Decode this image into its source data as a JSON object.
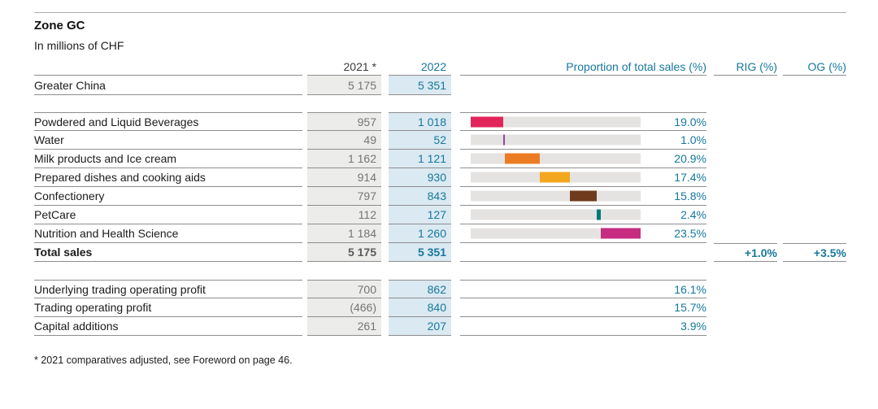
{
  "header": {
    "title": "Zone GC",
    "subtitle": "In millions of CHF"
  },
  "columns": {
    "y2021": "2021 *",
    "y2022": "2022",
    "proportion": "Proportion of total sales (%)",
    "rig": "RIG (%)",
    "og": "OG (%)"
  },
  "zone_row": {
    "label": "Greater China",
    "v2021": "5 175",
    "v2022": "5 351"
  },
  "categories": [
    {
      "label": "Powdered and Liquid Beverages",
      "v2021": "957",
      "v2022": "1 018",
      "pct": "19.0%",
      "bar": {
        "start": 0,
        "width": 19.0,
        "color": "#e2245a"
      }
    },
    {
      "label": "Water",
      "v2021": "49",
      "v2022": "52",
      "pct": "1.0%",
      "bar": {
        "start": 19.0,
        "width": 1.0,
        "color": "#8d4a9e"
      }
    },
    {
      "label": "Milk products and Ice cream",
      "v2021": "1 162",
      "v2022": "1 121",
      "pct": "20.9%",
      "bar": {
        "start": 20.0,
        "width": 20.9,
        "color": "#ec7c24"
      }
    },
    {
      "label": "Prepared dishes and cooking aids",
      "v2021": "914",
      "v2022": "930",
      "pct": "17.4%",
      "bar": {
        "start": 40.9,
        "width": 17.4,
        "color": "#f2a71f"
      }
    },
    {
      "label": "Confectionery",
      "v2021": "797",
      "v2022": "843",
      "pct": "15.8%",
      "bar": {
        "start": 58.3,
        "width": 15.8,
        "color": "#6f3b1c"
      }
    },
    {
      "label": "PetCare",
      "v2021": "112",
      "v2022": "127",
      "pct": "2.4%",
      "bar": {
        "start": 74.1,
        "width": 2.4,
        "color": "#007a79"
      }
    },
    {
      "label": "Nutrition and Health Science",
      "v2021": "1 184",
      "v2022": "1 260",
      "pct": "23.5%",
      "bar": {
        "start": 76.5,
        "width": 23.5,
        "color": "#c62d80"
      }
    }
  ],
  "total_row": {
    "label": "Total sales",
    "v2021": "5 175",
    "v2022": "5 351",
    "rig": "+1.0%",
    "og": "+3.5%"
  },
  "financials": [
    {
      "label": "Underlying trading operating profit",
      "v2021": "700",
      "v2022": "862",
      "pct": "16.1%"
    },
    {
      "label": "Trading operating profit",
      "v2021": "(466)",
      "v2022": "840",
      "pct": "15.7%"
    },
    {
      "label": "Capital additions",
      "v2021": "261",
      "v2022": "207",
      "pct": "3.9%"
    }
  ],
  "footnote": "* 2021 comparatives adjusted, see Foreword on page 46.",
  "colors": {
    "accent_blue": "#17789c",
    "col2021_bg": "#ececea",
    "col2022_bg": "#dbe9f2",
    "track_gray": "#e4e3e1",
    "rule_gray": "#8e8e8e"
  }
}
